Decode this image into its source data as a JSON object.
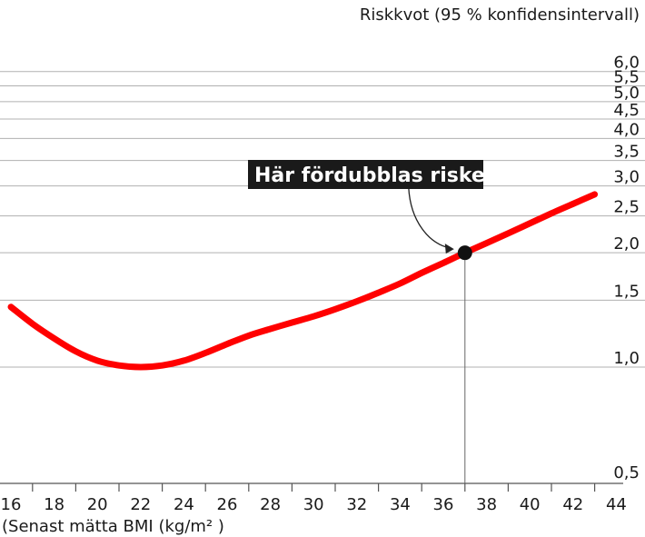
{
  "chart_data": {
    "type": "line",
    "ylabel": "Riskkvot (95 % konfidensintervall)",
    "xlabel": "(Senast mätta BMI (kg/m² )",
    "yscale": "log",
    "ylim": [
      0.5,
      6.0
    ],
    "xlim": [
      16,
      44
    ],
    "yticks": [
      {
        "value": 0.5,
        "label": "0,5"
      },
      {
        "value": 1.0,
        "label": "1,0"
      },
      {
        "value": 1.5,
        "label": "1,5"
      },
      {
        "value": 2.0,
        "label": "2,0"
      },
      {
        "value": 2.5,
        "label": "2,5"
      },
      {
        "value": 3.0,
        "label": "3,0"
      },
      {
        "value": 3.5,
        "label": "3,5"
      },
      {
        "value": 4.0,
        "label": "4,0"
      },
      {
        "value": 4.5,
        "label": "4,5"
      },
      {
        "value": 5.0,
        "label": "5,0"
      },
      {
        "value": 5.5,
        "label": "5,5"
      },
      {
        "value": 6.0,
        "label": "6,0"
      }
    ],
    "xticks": [
      16,
      18,
      20,
      22,
      24,
      26,
      28,
      30,
      32,
      34,
      36,
      38,
      40,
      42,
      44
    ],
    "series": [
      {
        "color": "#ff0000",
        "x": [
          16,
          17,
          18,
          19,
          20,
          21,
          22,
          23,
          24,
          25,
          26,
          27,
          28,
          29,
          30,
          31,
          32,
          33,
          34,
          35,
          36,
          37,
          38,
          39,
          40,
          41,
          42,
          43
        ],
        "y": [
          1.44,
          1.3,
          1.19,
          1.1,
          1.04,
          1.01,
          1.0,
          1.01,
          1.04,
          1.09,
          1.15,
          1.21,
          1.26,
          1.31,
          1.36,
          1.42,
          1.49,
          1.57,
          1.66,
          1.77,
          1.88,
          2.0,
          2.12,
          2.25,
          2.39,
          2.54,
          2.69,
          2.85
        ]
      }
    ],
    "annotation": {
      "text": "Här fördubblas risken",
      "x": 37,
      "y": 2.0
    }
  }
}
